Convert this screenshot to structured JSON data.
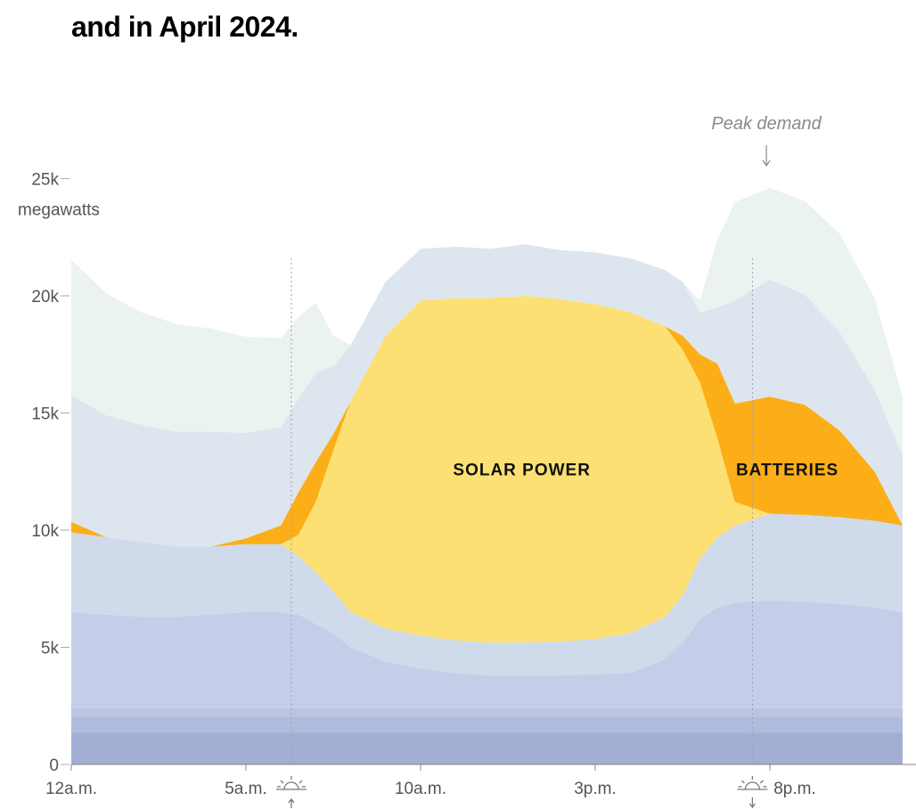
{
  "headline": "and in April 2024.",
  "chart_data": {
    "type": "area",
    "stacked": true,
    "xlabel": "",
    "ylabel": "megawatts",
    "ylim": [
      0,
      25000
    ],
    "xlim": [
      0,
      23.8
    ],
    "y_ticks": [
      {
        "value": 0,
        "label": "0"
      },
      {
        "value": 5000,
        "label": "5k"
      },
      {
        "value": 10000,
        "label": "10k"
      },
      {
        "value": 15000,
        "label": "15k"
      },
      {
        "value": 20000,
        "label": "20k"
      },
      {
        "value": 25000,
        "label": "25k"
      }
    ],
    "y_unit": "megawatts",
    "x_ticks": [
      {
        "value": 0,
        "label": "12a.m."
      },
      {
        "value": 5,
        "label": "5a.m."
      },
      {
        "value": 10,
        "label": "10a.m."
      },
      {
        "value": 15,
        "label": "3p.m."
      },
      {
        "value": 20,
        "label": "8p.m."
      }
    ],
    "x": [
      0,
      1,
      2,
      3,
      4,
      5,
      6,
      6.5,
      7,
      7.5,
      8,
      9,
      10,
      11,
      12,
      13,
      14,
      15,
      16,
      17,
      17.5,
      18,
      18.5,
      19,
      20,
      21,
      22,
      23,
      23.8
    ],
    "series": [
      {
        "name": "",
        "color": "#a3aed4",
        "values": [
          1350,
          1350,
          1350,
          1350,
          1350,
          1350,
          1350,
          1350,
          1350,
          1350,
          1350,
          1350,
          1350,
          1350,
          1350,
          1350,
          1350,
          1350,
          1350,
          1350,
          1350,
          1350,
          1350,
          1350,
          1350,
          1350,
          1350,
          1350,
          1350
        ]
      },
      {
        "name": "",
        "color": "#b0bbdd",
        "values": [
          700,
          700,
          700,
          700,
          700,
          700,
          700,
          700,
          700,
          700,
          700,
          700,
          700,
          700,
          700,
          700,
          700,
          700,
          700,
          700,
          700,
          700,
          700,
          700,
          700,
          700,
          700,
          700,
          700
        ]
      },
      {
        "name": "",
        "color": "#bcc6e4",
        "values": [
          350,
          350,
          350,
          350,
          350,
          350,
          350,
          350,
          350,
          350,
          350,
          350,
          350,
          350,
          350,
          350,
          350,
          350,
          350,
          350,
          350,
          350,
          350,
          350,
          350,
          350,
          350,
          350,
          350
        ]
      },
      {
        "name": "",
        "color": "#c4cee8",
        "values": [
          4100,
          4000,
          3900,
          3900,
          4000,
          4100,
          4100,
          4000,
          3600,
          3200,
          2600,
          2000,
          1700,
          1500,
          1400,
          1400,
          1400,
          1450,
          1500,
          2100,
          2800,
          3800,
          4300,
          4500,
          4600,
          4550,
          4450,
          4300,
          4100
        ]
      },
      {
        "name": "",
        "color": "#cfdaea",
        "values": [
          3400,
          3300,
          3200,
          3000,
          2900,
          2900,
          2900,
          2500,
          2200,
          1800,
          1500,
          1400,
          1400,
          1400,
          1400,
          1400,
          1450,
          1500,
          1700,
          1800,
          2000,
          2600,
          3000,
          3300,
          3700,
          3700,
          3700,
          3700,
          3700
        ]
      },
      {
        "name": "SOLAR POWER",
        "color": "#fde073",
        "values": [
          0,
          0,
          0,
          0,
          0,
          0,
          0,
          900,
          3000,
          6000,
          9000,
          12500,
          14300,
          14600,
          14700,
          14800,
          14600,
          14300,
          13700,
          12400,
          10500,
          7500,
          4200,
          1000,
          0,
          0,
          0,
          0,
          0
        ]
      },
      {
        "name": "BATTERIES",
        "color": "#fbae17",
        "values": [
          450,
          0,
          0,
          0,
          0,
          250,
          800,
          1800,
          1700,
          700,
          0,
          0,
          0,
          0,
          0,
          0,
          0,
          0,
          0,
          0,
          600,
          1200,
          3200,
          4200,
          5000,
          4700,
          3700,
          2100,
          0
        ]
      },
      {
        "name": "",
        "color": "#dde6ee",
        "values": [
          5400,
          5200,
          5000,
          4900,
          4900,
          4500,
          4200,
          4000,
          3800,
          2900,
          2400,
          2300,
          2200,
          2200,
          2100,
          2200,
          2100,
          2200,
          2300,
          2400,
          2300,
          1800,
          2400,
          4400,
          5000,
          4700,
          4200,
          3500,
          3000
        ]
      },
      {
        "name": "",
        "color": "#ebf3f1",
        "values": [
          5800,
          5200,
          4800,
          4600,
          4400,
          4100,
          3800,
          3500,
          3000,
          1300,
          0,
          0,
          0,
          0,
          0,
          0,
          0,
          0,
          0,
          0,
          0,
          500,
          2900,
          4200,
          3900,
          4000,
          4200,
          3900,
          2500
        ]
      }
    ],
    "annotations": [
      {
        "text": "Peak demand",
        "x": 19.9
      },
      {
        "text": "SOLAR POWER",
        "x": 12.9,
        "y": 12600
      },
      {
        "text": "BATTERIES",
        "x": 20.5,
        "y": 12600
      }
    ],
    "markers": [
      {
        "type": "sunrise",
        "x": 6.3
      },
      {
        "type": "sunset",
        "x": 19.5
      }
    ],
    "grid": false,
    "legend": "none"
  }
}
